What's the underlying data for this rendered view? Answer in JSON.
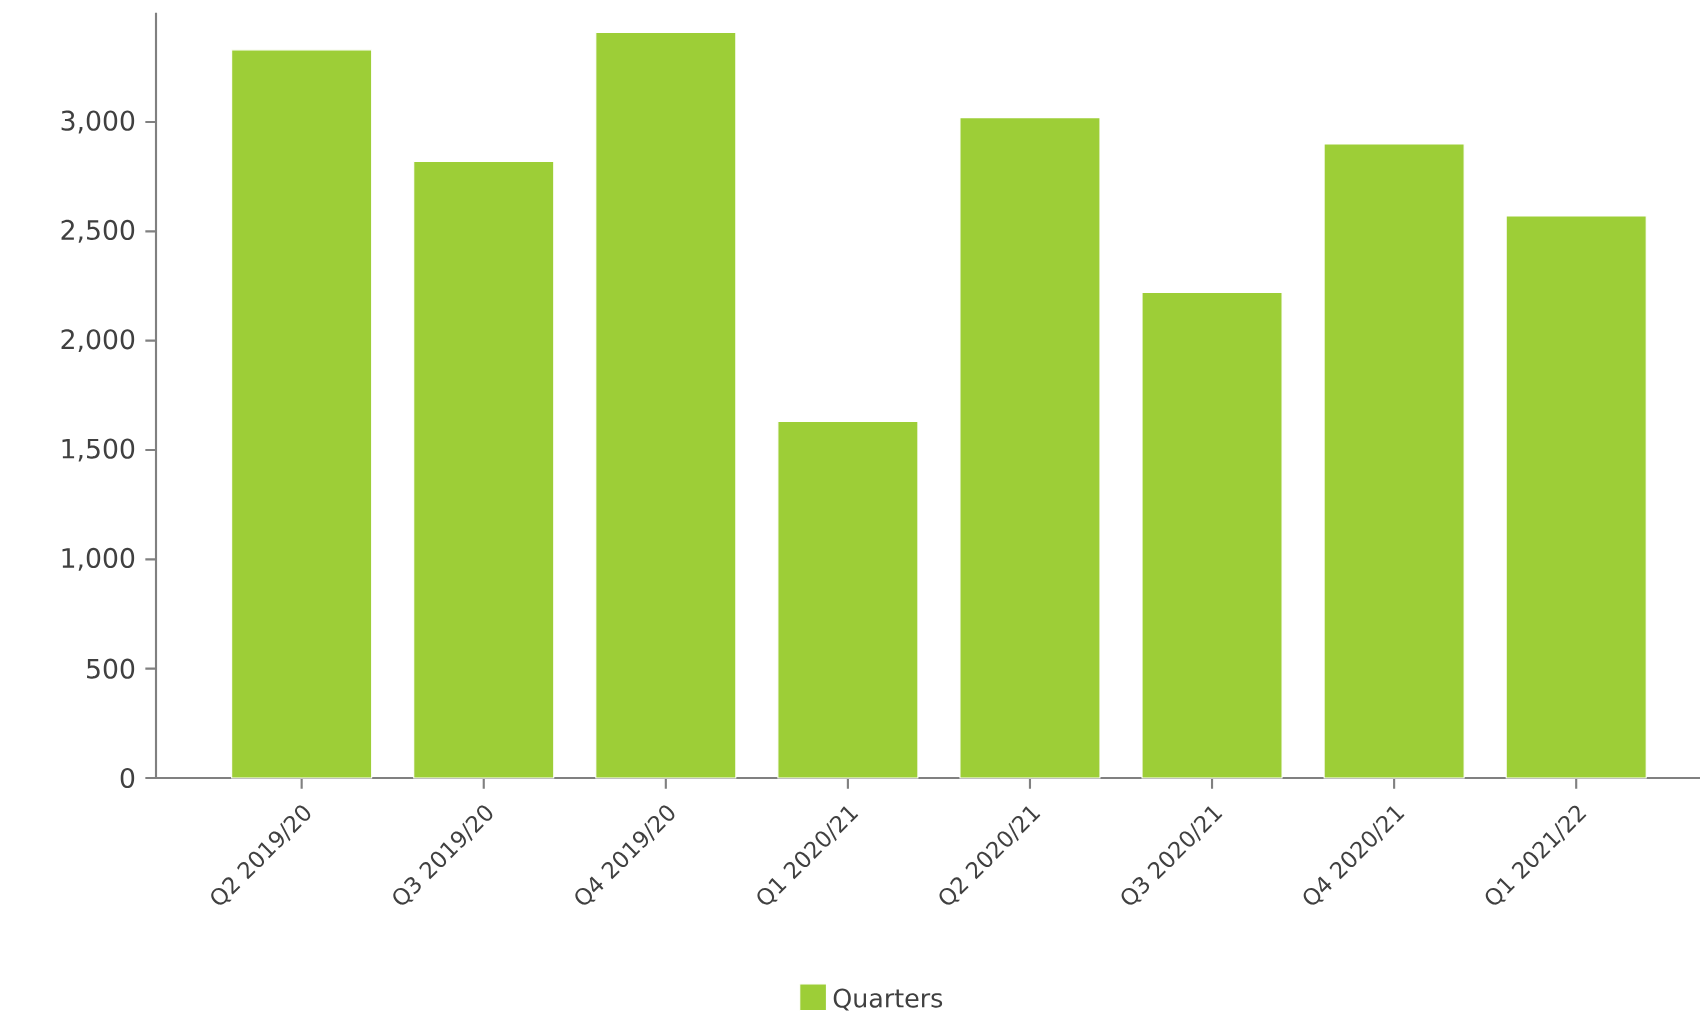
{
  "chart_data": {
    "type": "bar",
    "categories": [
      "Q2 2019/20",
      "Q3 2019/20",
      "Q4 2019/20",
      "Q1 2020/21",
      "Q2 2020/21",
      "Q3 2020/21",
      "Q4 2020/21",
      "Q1 2021/22"
    ],
    "series": [
      {
        "name": "Quarters",
        "color": "#9dce37",
        "values": [
          3330,
          2820,
          3410,
          1630,
          3020,
          2220,
          2900,
          2570
        ]
      }
    ],
    "ylim": [
      0,
      3500
    ],
    "yticks": [
      0,
      {
        "value": 500,
        "label": "500"
      },
      {
        "value": 1000,
        "label": "1,000"
      },
      {
        "value": 1500,
        "label": "1,500"
      },
      {
        "value": 2000,
        "label": "2,000"
      },
      {
        "value": 2500,
        "label": "2,500"
      },
      {
        "value": 3000,
        "label": "3,000"
      }
    ],
    "grid": false,
    "legend": "bottom"
  }
}
